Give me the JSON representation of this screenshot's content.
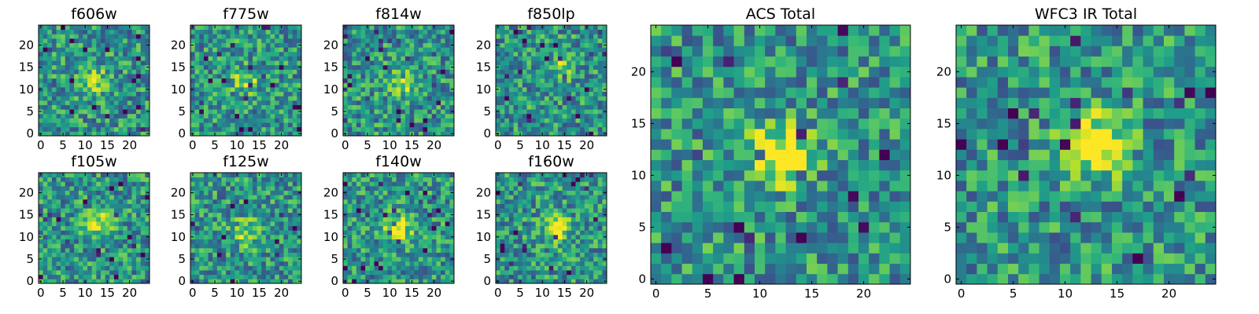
{
  "chart_data": [
    {
      "type": "heatmap",
      "title": "f606w",
      "grid_size": 25,
      "colormap": "viridis",
      "x_ticks": [
        0,
        5,
        10,
        15,
        20
      ],
      "y_ticks": [
        0,
        5,
        10,
        15,
        20
      ],
      "source_center": [
        12,
        12
      ],
      "source_strength": 0.35
    },
    {
      "type": "heatmap",
      "title": "f775w",
      "grid_size": 25,
      "colormap": "viridis",
      "x_ticks": [
        0,
        5,
        10,
        15,
        20
      ],
      "y_ticks": [
        0,
        5,
        10,
        15,
        20
      ],
      "source_center": [
        12,
        12
      ],
      "source_strength": 0.3
    },
    {
      "type": "heatmap",
      "title": "f814w",
      "grid_size": 25,
      "colormap": "viridis",
      "x_ticks": [
        0,
        5,
        10,
        15,
        20
      ],
      "y_ticks": [
        0,
        5,
        10,
        15,
        20
      ],
      "source_center": [
        13,
        12
      ],
      "source_strength": 0.4
    },
    {
      "type": "heatmap",
      "title": "f850lp",
      "grid_size": 25,
      "colormap": "viridis",
      "x_ticks": [
        0,
        5,
        10,
        15,
        20
      ],
      "y_ticks": [
        0,
        5,
        10,
        15,
        20
      ],
      "source_center": [
        14,
        15
      ],
      "source_strength": 0.25
    },
    {
      "type": "heatmap",
      "title": "f105w",
      "grid_size": 25,
      "colormap": "viridis",
      "x_ticks": [
        0,
        5,
        10,
        15,
        20
      ],
      "y_ticks": [
        0,
        5,
        10,
        15,
        20
      ],
      "source_center": [
        13,
        13
      ],
      "source_strength": 0.45
    },
    {
      "type": "heatmap",
      "title": "f125w",
      "grid_size": 25,
      "colormap": "viridis",
      "x_ticks": [
        0,
        5,
        10,
        15,
        20
      ],
      "y_ticks": [
        0,
        5,
        10,
        15,
        20
      ],
      "source_center": [
        12,
        11
      ],
      "source_strength": 0.35
    },
    {
      "type": "heatmap",
      "title": "f140w",
      "grid_size": 25,
      "colormap": "viridis",
      "x_ticks": [
        0,
        5,
        10,
        15,
        20
      ],
      "y_ticks": [
        0,
        5,
        10,
        15,
        20
      ],
      "source_center": [
        12,
        12
      ],
      "source_strength": 0.5
    },
    {
      "type": "heatmap",
      "title": "f160w",
      "grid_size": 25,
      "colormap": "viridis",
      "x_ticks": [
        0,
        5,
        10,
        15,
        20
      ],
      "y_ticks": [
        0,
        5,
        10,
        15,
        20
      ],
      "source_center": [
        13,
        12
      ],
      "source_strength": 0.55
    },
    {
      "type": "heatmap",
      "title": "ACS Total",
      "grid_size": 25,
      "colormap": "viridis",
      "x_ticks": [
        0,
        5,
        10,
        15,
        20
      ],
      "y_ticks": [
        0,
        5,
        10,
        15,
        20
      ],
      "source_center": [
        12,
        12
      ],
      "source_strength": 0.55
    },
    {
      "type": "heatmap",
      "title": "WFC3 IR Total",
      "grid_size": 25,
      "colormap": "viridis",
      "x_ticks": [
        0,
        5,
        10,
        15,
        20
      ],
      "y_ticks": [
        0,
        5,
        10,
        15,
        20
      ],
      "source_center": [
        13,
        13
      ],
      "source_strength": 0.6
    }
  ]
}
